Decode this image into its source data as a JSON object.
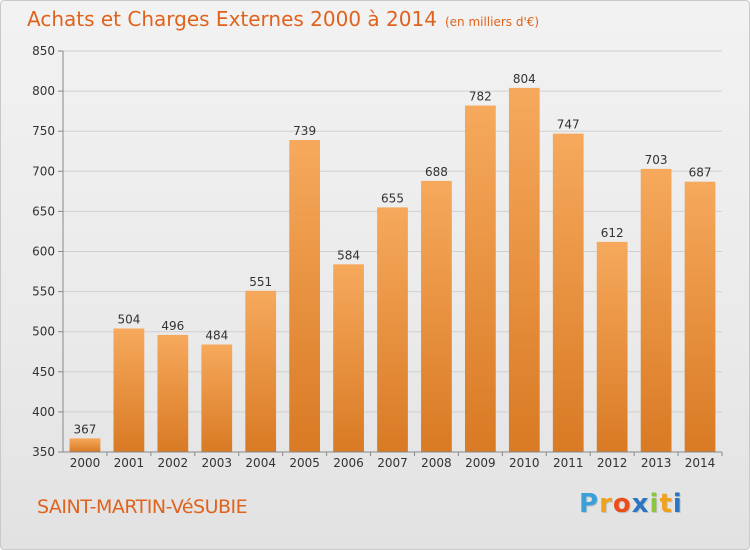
{
  "header": {
    "title": "Achats et Charges Externes 2000 à 2014",
    "subtitle": "(en milliers d'€)"
  },
  "footer": {
    "commune": "SAINT-MARTIN-VéSUBIE"
  },
  "brand": {
    "letters": [
      "P",
      "r",
      "o",
      "x",
      "i",
      "t",
      "i"
    ],
    "colors": [
      "#3aa0d8",
      "#f0a21c",
      "#e94e1b",
      "#2b76c0",
      "#8cc63e",
      "#f0a21c",
      "#2b76c0"
    ]
  },
  "chart_data": {
    "type": "bar",
    "title": "Achats et Charges Externes 2000 à 2014",
    "subtitle": "(en milliers d'€)",
    "xlabel": "",
    "ylabel": "",
    "categories": [
      "2000",
      "2001",
      "2002",
      "2003",
      "2004",
      "2005",
      "2006",
      "2007",
      "2008",
      "2009",
      "2010",
      "2011",
      "2012",
      "2013",
      "2014"
    ],
    "values": [
      367,
      504,
      496,
      484,
      551,
      739,
      584,
      655,
      688,
      782,
      804,
      747,
      612,
      703,
      687
    ],
    "ylim": [
      350,
      850
    ],
    "yticks": [
      350,
      400,
      450,
      500,
      550,
      600,
      650,
      700,
      750,
      800,
      850
    ],
    "grid": true,
    "bar_color_top": "#f6a95c",
    "bar_color_bottom": "#d97a24"
  }
}
